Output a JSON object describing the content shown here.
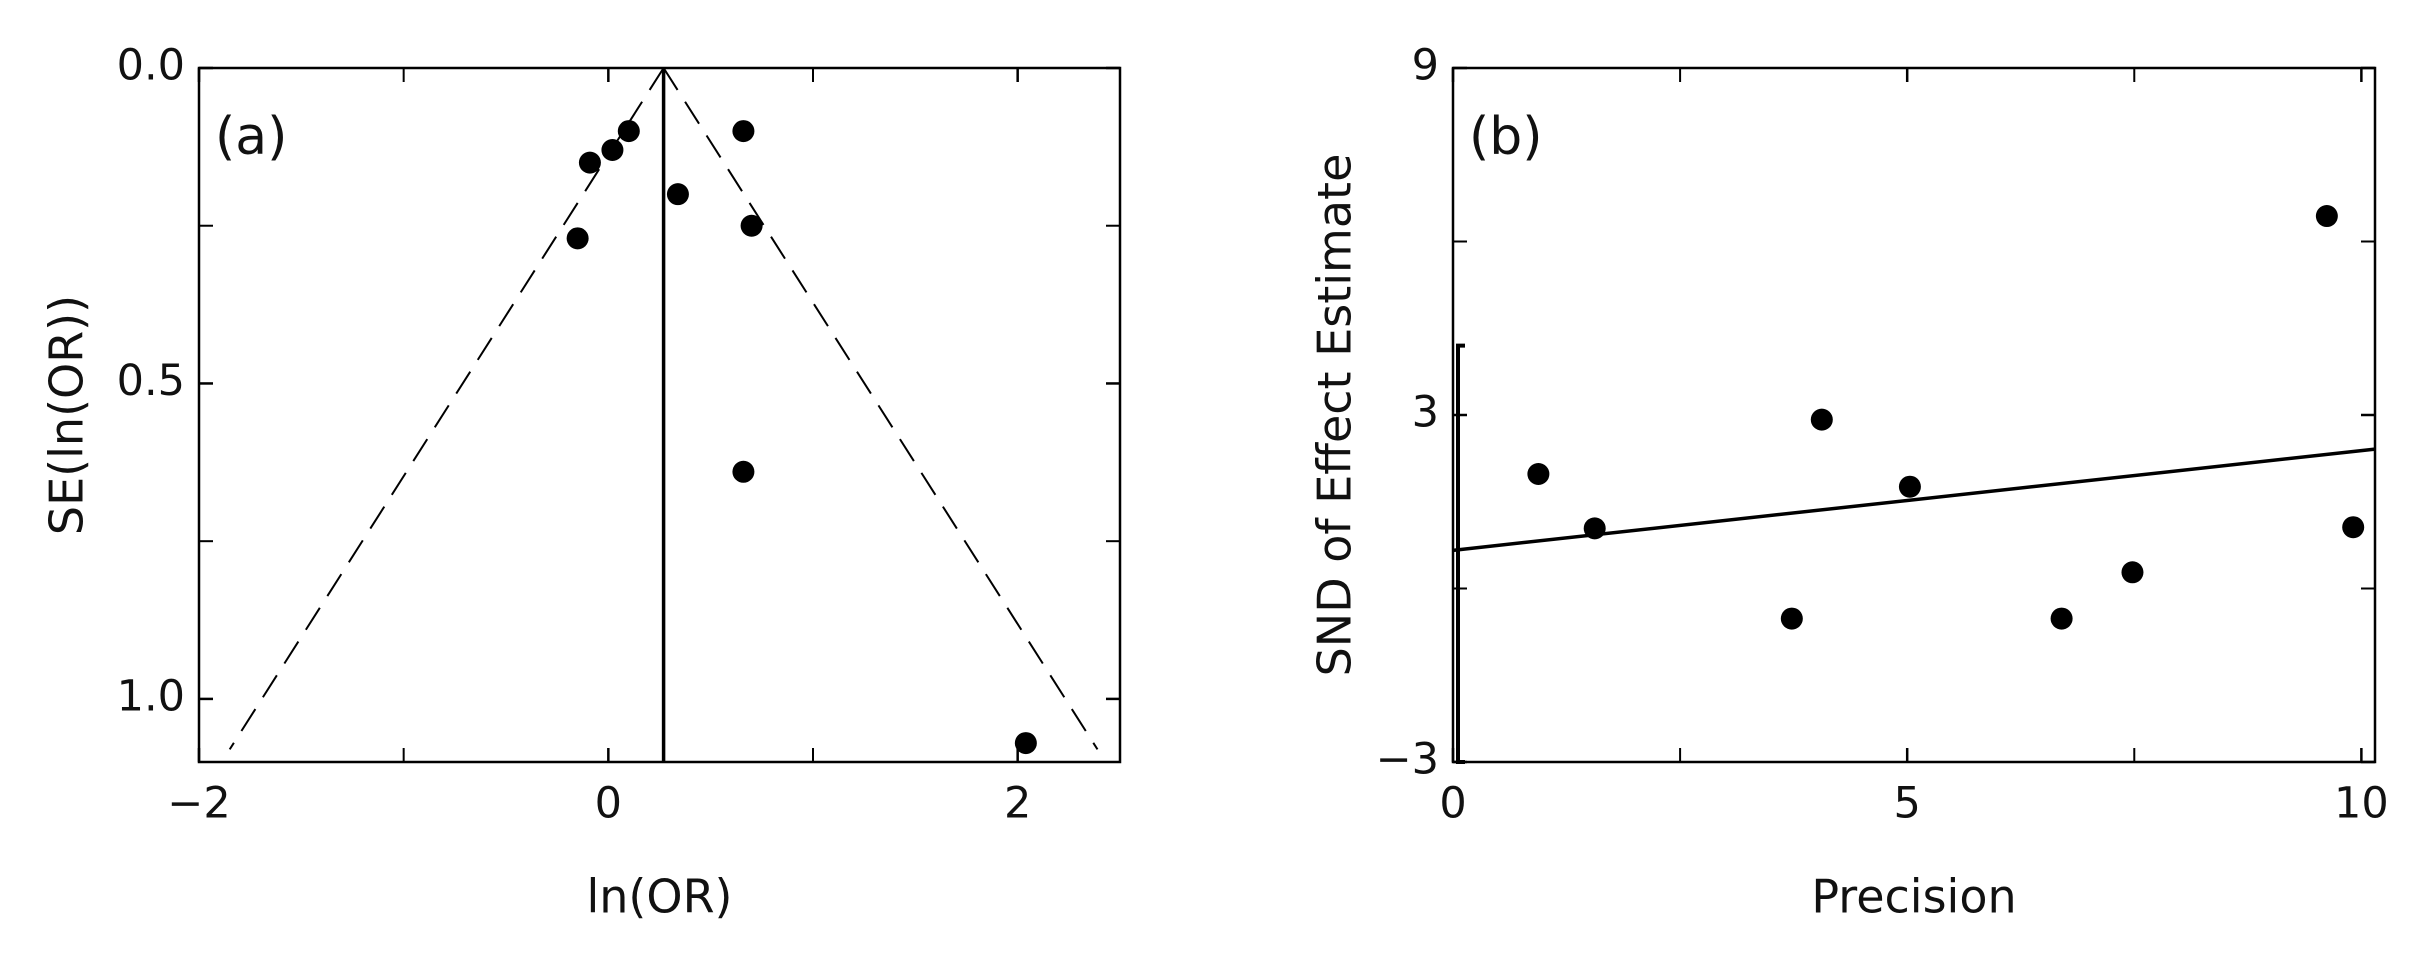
{
  "chart_data": [
    {
      "type": "scatter",
      "annotation": "(a)",
      "x_label": "ln(OR)",
      "y_label": "SE(ln(OR))",
      "xlim": [
        -2,
        2.5
      ],
      "ylim": [
        1.1,
        0
      ],
      "xticks": [
        {
          "value": -2,
          "label": "−2"
        },
        0,
        2
      ],
      "xminorticks": [
        -1,
        1
      ],
      "yticks": [
        {
          "value": 0,
          "label": "0.0"
        },
        0.5,
        {
          "value": 1,
          "label": "1.0"
        }
      ],
      "yminorticks": [
        0.25,
        0.75
      ],
      "color": "#000000",
      "x": [
        -0.15,
        -0.09,
        0.02,
        0.1,
        0.34,
        0.66,
        0.7,
        0.66,
        2.04
      ],
      "values": [
        0.27,
        0.15,
        0.13,
        0.1,
        0.2,
        0.1,
        0.25,
        0.64,
        1.07
      ],
      "lines": [
        {
          "style": "solid",
          "x": [
            0.27,
            0.27
          ],
          "y": [
            0,
            1.1
          ]
        },
        {
          "style": "dashed",
          "x": [
            0.27,
            -1.85
          ],
          "y": [
            0,
            1.08
          ]
        },
        {
          "style": "dashed",
          "x": [
            0.27,
            2.39
          ],
          "y": [
            0,
            1.08
          ]
        }
      ]
    },
    {
      "type": "scatter",
      "annotation": "(b)",
      "x_label": "Precision",
      "y_label": "SND of Effect Estimate",
      "xlim": [
        0,
        10.15
      ],
      "ylim": [
        -3,
        9
      ],
      "xticks": [
        0,
        5,
        10
      ],
      "xminorticks": [
        2.5,
        7.5
      ],
      "yticks": [
        {
          "value": -3,
          "label": "−3"
        },
        3,
        9
      ],
      "yminorticks": [
        0,
        6
      ],
      "axis_bracket": [
        -3,
        4.2
      ],
      "color": "#000000",
      "x": [
        0.94,
        1.56,
        3.73,
        4.06,
        5.03,
        6.7,
        7.48,
        9.62,
        9.91
      ],
      "values": [
        1.98,
        1.04,
        -0.52,
        2.92,
        1.76,
        -0.52,
        0.28,
        6.44,
        1.06
      ],
      "lines": [
        {
          "style": "solid",
          "x": [
            0,
            10.15
          ],
          "y": [
            0.66,
            2.41
          ]
        }
      ]
    }
  ]
}
